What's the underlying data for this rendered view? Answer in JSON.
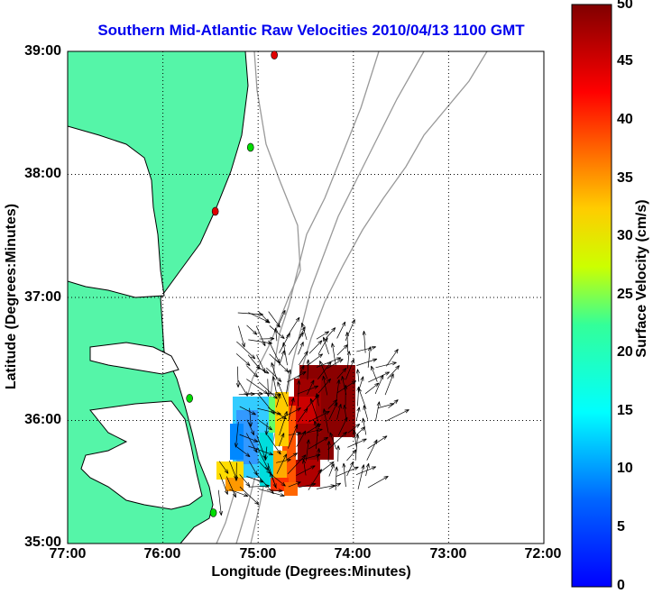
{
  "title": "Southern Mid-Atlantic Raw Velocities 2010/04/13 1100 GMT",
  "xlabel": "Longitude (Degrees:Minutes)",
  "ylabel": "Latitude (Degrees:Minutes)",
  "x_ticks": [
    "77:00",
    "76:00",
    "75:00",
    "74:00",
    "73:00",
    "72:00"
  ],
  "y_ticks": [
    "39:00",
    "38:00",
    "37:00",
    "36:00",
    "35:00"
  ],
  "colorbar": {
    "label": "Surface Velocity (cm/s)",
    "ticks": [
      "50",
      "45",
      "40",
      "35",
      "30",
      "25",
      "20",
      "15",
      "10",
      "5",
      "0"
    ],
    "range": [
      0,
      50
    ],
    "colormap": "jet"
  },
  "colors": {
    "land": "#55f5a8",
    "coast": "#000000",
    "bathymetry": "#999999",
    "title": "#0000ee",
    "grid": "#000000"
  },
  "map": {
    "lon_range": [
      -77,
      -72
    ],
    "lat_range": [
      35,
      39
    ],
    "grid": "dotted",
    "stations": [
      {
        "lon": -74.83,
        "lat": 38.97,
        "color": "#e00000"
      },
      {
        "lon": -75.08,
        "lat": 38.22,
        "color": "#00dd00"
      },
      {
        "lon": -75.45,
        "lat": 37.7,
        "color": "#e00000"
      },
      {
        "lon": -75.72,
        "lat": 36.18,
        "color": "#00dd00"
      },
      {
        "lon": -75.47,
        "lat": 35.25,
        "color": "#00dd00"
      }
    ]
  }
}
